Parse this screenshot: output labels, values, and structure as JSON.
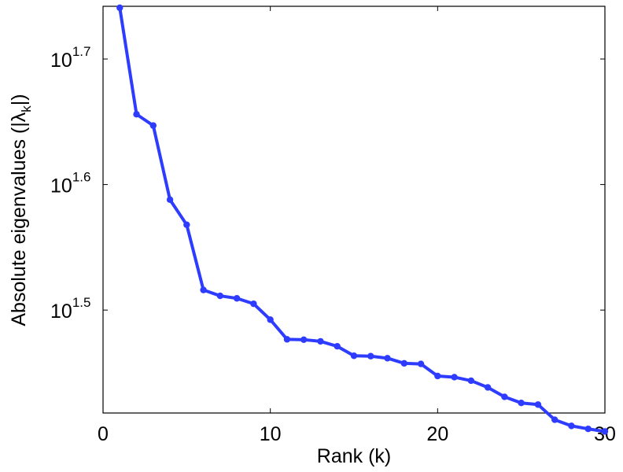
{
  "chart_data": {
    "type": "line",
    "title": "",
    "xlabel": "Rank (k)",
    "ylabel_main": "Absolute eigenvalues (|λ",
    "ylabel_sub": "k",
    "ylabel_tail": "|)",
    "xlim": [
      0,
      30
    ],
    "x_ticks": [
      0,
      10,
      20,
      30
    ],
    "y_scale": "log10",
    "ylim_log10": [
      1.418,
      1.742
    ],
    "y_ticks": [
      {
        "exponent": 1.5,
        "base": "10",
        "sup": "1.5"
      },
      {
        "exponent": 1.6,
        "base": "10",
        "sup": "1.6"
      },
      {
        "exponent": 1.7,
        "base": "10",
        "sup": "1.7"
      }
    ],
    "grid": false,
    "legend": "none",
    "line_color": "#2e3cff",
    "series": [
      {
        "x": [
          1,
          2,
          3,
          4,
          5,
          6,
          7,
          8,
          9,
          10,
          11,
          12,
          13,
          14,
          15,
          16,
          17,
          18,
          19,
          20,
          21,
          22,
          23,
          24,
          25,
          26,
          27,
          28,
          29,
          30
        ],
        "y": [
          55.06,
          45.29,
          44.36,
          38.72,
          36.98,
          32.81,
          32.46,
          32.31,
          31.99,
          31.07,
          29.97,
          29.95,
          29.86,
          29.59,
          29.08,
          29.06,
          28.95,
          28.68,
          28.65,
          28.02,
          27.96,
          27.78,
          27.44,
          26.97,
          26.67,
          26.59,
          25.86,
          25.57,
          25.43,
          25.31
        ]
      }
    ]
  }
}
